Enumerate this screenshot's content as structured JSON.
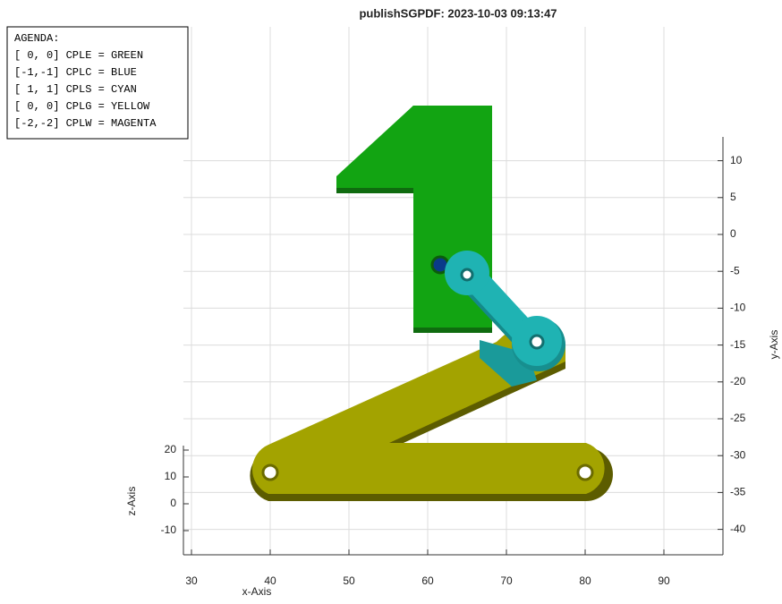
{
  "title": "publishSGPDF: 2023-10-03 09:13:47",
  "agenda": [
    "AGENDA:",
    "[ 0, 0] CPLE = GREEN",
    "[-1,-1] CPLC = BLUE",
    "[ 1, 1] CPLS = CYAN",
    "[ 0, 0] CPLG = YELLOW",
    "[-2,-2] CPLW = MAGENTA"
  ],
  "x_axis": {
    "label": "x-Axis",
    "ticks": [
      30,
      40,
      50,
      60,
      70,
      80,
      90
    ]
  },
  "y_axis": {
    "label": "y-Axis",
    "ticks": [
      10,
      5,
      0,
      -5,
      -10,
      -15,
      -20,
      -25,
      -30,
      -35,
      -40
    ]
  },
  "z_axis": {
    "label": "z-Axis",
    "ticks": [
      20,
      10,
      0,
      -10
    ]
  }
}
